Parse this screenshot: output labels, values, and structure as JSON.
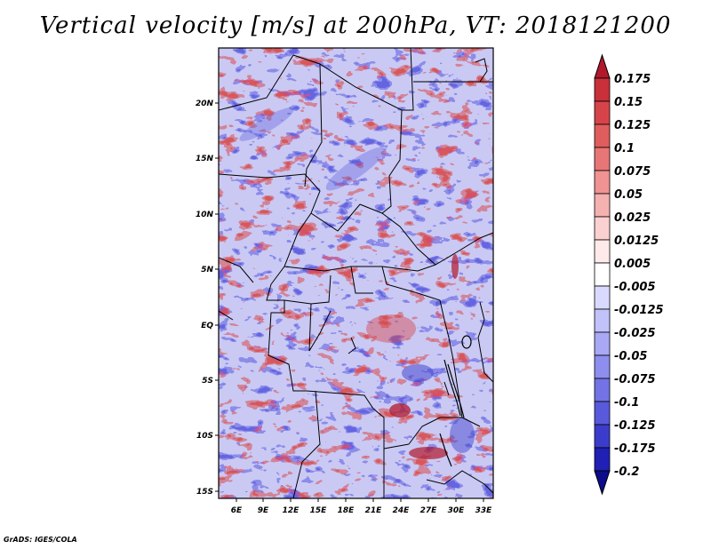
{
  "title": "Vertical velocity [m/s] at 200hPa, VT: 2018121200",
  "footer": "GrADS: IGES/COLA",
  "lat_ticks": [
    "20N",
    "15N",
    "10N",
    "5N",
    "EQ",
    "5S",
    "10S",
    "15S"
  ],
  "lon_ticks": [
    "6E",
    "9E",
    "12E",
    "15E",
    "18E",
    "21E",
    "24E",
    "27E",
    "30E",
    "33E"
  ],
  "colorbar": {
    "labels": [
      "0.175",
      "0.15",
      "0.125",
      "0.1",
      "0.075",
      "0.05",
      "0.025",
      "0.0125",
      "0.005",
      "-0.005",
      "-0.0125",
      "-0.025",
      "-0.05",
      "-0.075",
      "-0.1",
      "-0.125",
      "-0.175",
      "-0.2"
    ],
    "colors": [
      "#b2182b",
      "#c8303a",
      "#d6444a",
      "#e05d5d",
      "#e87676",
      "#f09393",
      "#f5b0b0",
      "#fad0d0",
      "#ffeaea",
      "#ffffff",
      "#d9d9ff",
      "#c2c2fa",
      "#a8a8f5",
      "#8e8eee",
      "#7373e6",
      "#5959dc",
      "#3c3ccc",
      "#2020b4",
      "#0b0b8c"
    ]
  },
  "chart_data": {
    "type": "heatmap",
    "title": "Vertical velocity [m/s] at 200hPa, VT: 2018121200",
    "variable": "Vertical velocity",
    "units": "m/s",
    "level": "200hPa",
    "valid_time": "2018121200",
    "lon_range": [
      4,
      34
    ],
    "lat_range": [
      -16,
      25
    ],
    "contour_levels": [
      -0.2,
      -0.175,
      -0.125,
      -0.1,
      -0.075,
      -0.05,
      -0.025,
      -0.0125,
      -0.005,
      0.005,
      0.0125,
      0.025,
      0.05,
      0.075,
      0.1,
      0.125,
      0.15,
      0.175
    ]
  }
}
